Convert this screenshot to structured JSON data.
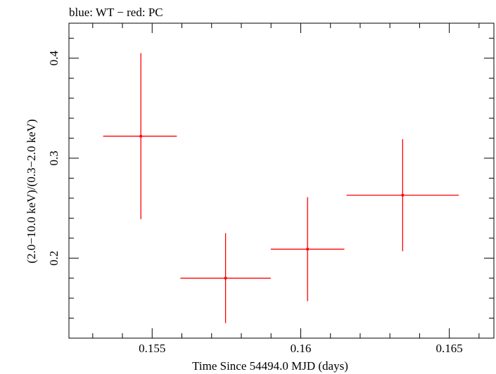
{
  "chart_data": {
    "type": "scatter",
    "title": "blue: WT − red: PC",
    "xlabel": "Time Since 54494.0 MJD (days)",
    "ylabel": "(2.0−10.0 keV)/(0.3−2.0 keV)",
    "xlim": [
      0.1522,
      0.1665
    ],
    "ylim": [
      0.12,
      0.435
    ],
    "x_ticks": [
      {
        "value": 0.155,
        "label": "0.155"
      },
      {
        "value": 0.16,
        "label": "0.16"
      },
      {
        "value": 0.165,
        "label": "0.165"
      }
    ],
    "y_ticks": [
      {
        "value": 0.2,
        "label": "0.2"
      },
      {
        "value": 0.3,
        "label": "0.3"
      },
      {
        "value": 0.4,
        "label": "0.4"
      }
    ],
    "series": [
      {
        "color": "#ff0000",
        "points": [
          {
            "x": 0.15462,
            "xerr_lo": 0.00127,
            "xerr_hi": 0.00121,
            "y": 0.322,
            "yerr_lo": 0.083,
            "yerr_hi": 0.083
          },
          {
            "x": 0.15747,
            "xerr_lo": 0.00152,
            "xerr_hi": 0.00152,
            "y": 0.18,
            "yerr_lo": 0.045,
            "yerr_hi": 0.045
          },
          {
            "x": 0.16023,
            "xerr_lo": 0.00124,
            "xerr_hi": 0.00124,
            "y": 0.209,
            "yerr_lo": 0.052,
            "yerr_hi": 0.052
          },
          {
            "x": 0.16343,
            "xerr_lo": 0.00189,
            "xerr_hi": 0.00189,
            "y": 0.263,
            "yerr_lo": 0.056,
            "yerr_hi": 0.056
          }
        ]
      }
    ],
    "grid": false,
    "legend": "none"
  }
}
